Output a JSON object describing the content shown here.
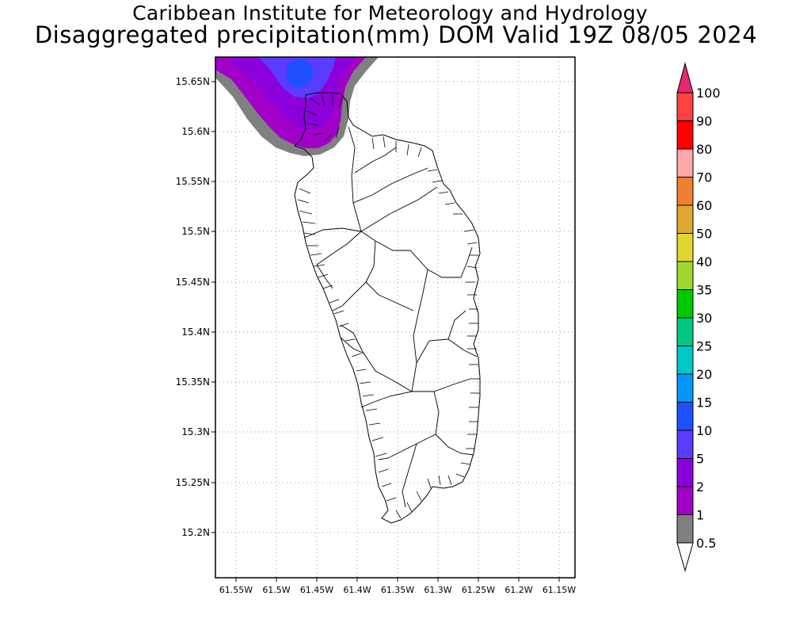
{
  "header": {
    "title_line1": "Caribbean Institute for Meteorology and Hydrology",
    "title_line2": "Disaggregated precipitation(mm) DOM Valid 19Z 08/05 2024"
  },
  "map": {
    "y_tick_labels": [
      "15.65N",
      "15.6N",
      "15.55N",
      "15.5N",
      "15.45N",
      "15.4N",
      "15.35N",
      "15.3N",
      "15.25N",
      "15.2N"
    ],
    "x_tick_labels": [
      "61.55W",
      "61.5W",
      "61.45W",
      "61.4W",
      "61.35W",
      "61.3W",
      "61.25W",
      "61.2W",
      "61.15W"
    ],
    "grid": "dotted",
    "precip_field": "light rain over northwest coast and Portsmouth area"
  },
  "colorbar": {
    "labels": [
      "100",
      "90",
      "80",
      "70",
      "60",
      "50",
      "40",
      "35",
      "30",
      "25",
      "20",
      "15",
      "10",
      "5",
      "2",
      "1",
      "0.5"
    ],
    "colors": [
      "#e8286e",
      "#ff4040",
      "#ff0000",
      "#ffa8a8",
      "#f08030",
      "#e0a830",
      "#e0d830",
      "#a0d830",
      "#00c800",
      "#00c880",
      "#00c8c8",
      "#0098ff",
      "#1e50ff",
      "#5a3cff",
      "#8c00dc",
      "#a000c8",
      "#808080",
      "#ffffff"
    ]
  }
}
